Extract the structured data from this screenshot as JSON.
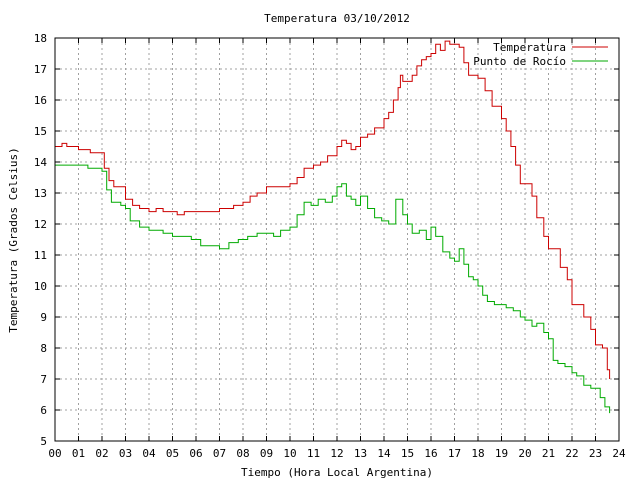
{
  "chart_data": {
    "type": "line",
    "title": "Temperatura 03/10/2012",
    "xlabel": "Tiempo (Hora Local Argentina)",
    "ylabel": "Temperatura (Grados Celsius)",
    "xlim": [
      0,
      24
    ],
    "ylim": [
      5,
      18
    ],
    "xticks": [
      "00",
      "01",
      "02",
      "03",
      "04",
      "05",
      "06",
      "07",
      "08",
      "09",
      "10",
      "11",
      "12",
      "13",
      "14",
      "15",
      "16",
      "17",
      "18",
      "19",
      "20",
      "21",
      "22",
      "23",
      "24"
    ],
    "yticks": [
      5,
      6,
      7,
      8,
      9,
      10,
      11,
      12,
      13,
      14,
      15,
      16,
      17,
      18
    ],
    "grid": true,
    "legend_position": "top-right",
    "series": [
      {
        "name": "Temperatura",
        "color": "#cc0000",
        "x": [
          0.0,
          0.3,
          0.5,
          1.0,
          1.5,
          2.0,
          2.1,
          2.3,
          2.5,
          2.8,
          3.0,
          3.3,
          3.6,
          4.0,
          4.3,
          4.6,
          5.0,
          5.2,
          5.5,
          6.0,
          6.5,
          7.0,
          7.3,
          7.6,
          8.0,
          8.3,
          8.6,
          9.0,
          9.5,
          10.0,
          10.3,
          10.6,
          11.0,
          11.3,
          11.6,
          12.0,
          12.2,
          12.4,
          12.6,
          12.8,
          13.0,
          13.3,
          13.6,
          14.0,
          14.2,
          14.4,
          14.6,
          14.7,
          14.8,
          15.0,
          15.2,
          15.4,
          15.6,
          15.8,
          16.0,
          16.2,
          16.4,
          16.6,
          16.8,
          17.0,
          17.2,
          17.4,
          17.6,
          18.0,
          18.3,
          18.6,
          19.0,
          19.2,
          19.4,
          19.6,
          19.8,
          20.0,
          20.3,
          20.5,
          20.8,
          21.0,
          21.3,
          21.5,
          21.8,
          22.0,
          22.3,
          22.5,
          22.8,
          23.0,
          23.3,
          23.5,
          23.6
        ],
        "y": [
          14.5,
          14.6,
          14.5,
          14.4,
          14.3,
          14.3,
          13.8,
          13.4,
          13.2,
          13.2,
          12.8,
          12.6,
          12.5,
          12.4,
          12.5,
          12.4,
          12.4,
          12.3,
          12.4,
          12.4,
          12.4,
          12.5,
          12.5,
          12.6,
          12.7,
          12.9,
          13.0,
          13.2,
          13.2,
          13.3,
          13.5,
          13.8,
          13.9,
          14.0,
          14.2,
          14.5,
          14.7,
          14.6,
          14.4,
          14.5,
          14.8,
          14.9,
          15.1,
          15.4,
          15.6,
          16.0,
          16.4,
          16.8,
          16.6,
          16.6,
          16.8,
          17.1,
          17.3,
          17.4,
          17.5,
          17.8,
          17.6,
          17.9,
          17.8,
          17.8,
          17.7,
          17.2,
          16.8,
          16.7,
          16.3,
          15.8,
          15.4,
          15.0,
          14.5,
          13.9,
          13.3,
          13.3,
          12.9,
          12.2,
          11.6,
          11.2,
          11.2,
          10.6,
          10.2,
          9.4,
          9.4,
          9.0,
          8.6,
          8.1,
          8.0,
          7.3,
          7.0
        ]
      },
      {
        "name": "Punto de Rocío",
        "color": "#00aa00",
        "x": [
          0.0,
          0.5,
          1.0,
          1.4,
          1.8,
          2.0,
          2.2,
          2.4,
          2.8,
          3.0,
          3.2,
          3.6,
          4.0,
          4.3,
          4.6,
          5.0,
          5.4,
          5.8,
          6.2,
          6.5,
          7.0,
          7.4,
          7.8,
          8.2,
          8.6,
          9.0,
          9.3,
          9.6,
          10.0,
          10.3,
          10.6,
          10.9,
          11.2,
          11.5,
          11.8,
          12.0,
          12.2,
          12.4,
          12.6,
          12.8,
          13.0,
          13.3,
          13.6,
          13.9,
          14.2,
          14.5,
          14.8,
          15.0,
          15.2,
          15.5,
          15.8,
          16.0,
          16.2,
          16.5,
          16.8,
          17.0,
          17.2,
          17.4,
          17.6,
          17.8,
          18.0,
          18.2,
          18.4,
          18.7,
          19.0,
          19.2,
          19.5,
          19.8,
          20.0,
          20.3,
          20.5,
          20.8,
          21.0,
          21.2,
          21.4,
          21.7,
          22.0,
          22.2,
          22.5,
          22.8,
          23.0,
          23.2,
          23.4,
          23.6
        ],
        "y": [
          13.9,
          13.9,
          13.9,
          13.8,
          13.8,
          13.7,
          13.1,
          12.7,
          12.6,
          12.5,
          12.1,
          11.9,
          11.8,
          11.8,
          11.7,
          11.6,
          11.6,
          11.5,
          11.3,
          11.3,
          11.2,
          11.4,
          11.5,
          11.6,
          11.7,
          11.7,
          11.6,
          11.8,
          11.9,
          12.3,
          12.7,
          12.6,
          12.8,
          12.7,
          12.9,
          13.2,
          13.3,
          12.9,
          12.8,
          12.6,
          12.9,
          12.5,
          12.2,
          12.1,
          12.0,
          12.8,
          12.3,
          12.0,
          11.7,
          11.8,
          11.5,
          11.9,
          11.6,
          11.1,
          10.9,
          10.8,
          11.2,
          10.7,
          10.3,
          10.2,
          10.0,
          9.7,
          9.5,
          9.4,
          9.4,
          9.3,
          9.2,
          9.0,
          8.9,
          8.7,
          8.8,
          8.5,
          8.3,
          7.6,
          7.5,
          7.4,
          7.2,
          7.1,
          6.8,
          6.7,
          6.7,
          6.4,
          6.1,
          5.9
        ]
      }
    ]
  }
}
